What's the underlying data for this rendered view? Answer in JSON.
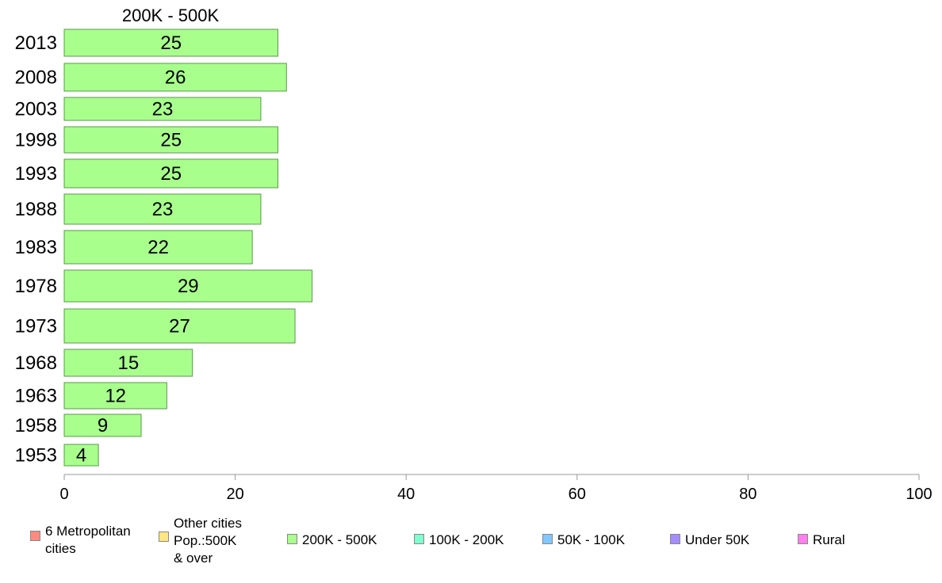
{
  "chart_data": {
    "type": "bar",
    "orientation": "horizontal",
    "title": "200K - 500K",
    "categories": [
      "2013",
      "2008",
      "2003",
      "1998",
      "1993",
      "1988",
      "1983",
      "1978",
      "1973",
      "1968",
      "1963",
      "1958",
      "1953"
    ],
    "values": [
      25,
      26,
      23,
      25,
      25,
      23,
      22,
      29,
      27,
      15,
      12,
      9,
      4
    ],
    "value_labels": [
      "25",
      "26",
      "23",
      "25",
      "25",
      "23",
      "22",
      "29",
      "27",
      "15",
      "12",
      "9",
      "4"
    ],
    "xlim": [
      0,
      100
    ],
    "xticks": [
      0,
      20,
      40,
      60,
      80,
      100
    ],
    "grid": false,
    "bar_color": "#a8ff8c",
    "bar_border_color": "#5a9a4a",
    "legend_position": "bottom",
    "legend": [
      {
        "label": "6 Metropolitan\n cities",
        "color": "#ff8a80"
      },
      {
        "label": "Other cities\nPop.:500K\n & over",
        "color": "#ffe680"
      },
      {
        "label": "200K - 500K",
        "color": "#a8ff8c"
      },
      {
        "label": "100K - 200K",
        "color": "#7fffd0"
      },
      {
        "label": "50K - 100K",
        "color": "#80c8ff"
      },
      {
        "label": "Under 50K",
        "color": "#a58cff"
      },
      {
        "label": "Rural",
        "color": "#ff7ff0"
      }
    ]
  }
}
